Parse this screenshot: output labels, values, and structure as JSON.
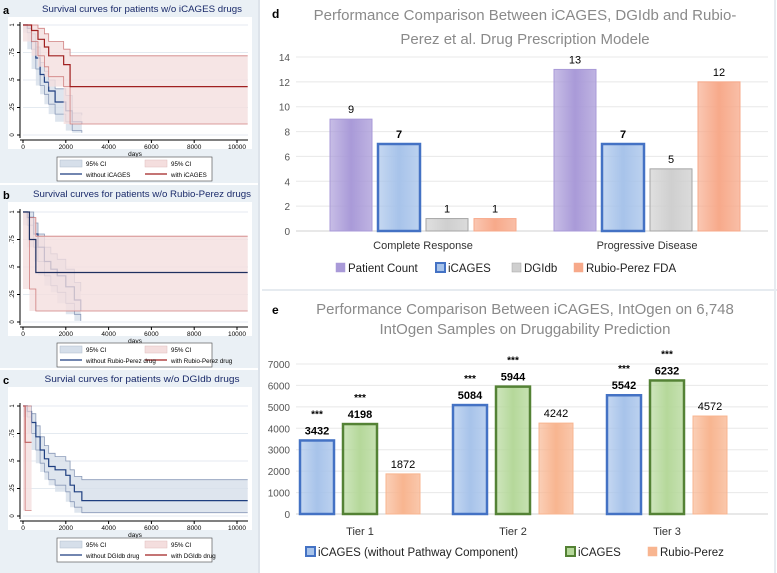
{
  "chart_data": [
    {
      "panel": "a",
      "type": "line",
      "title": "Survival curves for patients w/o iCAGES drugs",
      "xlabel": "days",
      "xlim": [
        0,
        10500
      ],
      "ylim": [
        0,
        1
      ],
      "xticks": [
        "0",
        "2000",
        "4000",
        "6000",
        "8000",
        "10000"
      ],
      "yticks": [
        "0",
        ".25",
        ".5",
        ".75",
        "1"
      ],
      "legend": [
        "95% CI",
        "95% CI",
        "without iCAGES",
        "with iCAGES"
      ],
      "series": [
        {
          "name": "without iCAGES",
          "color": "#1f3f80",
          "ci_color": "#d6dfea",
          "x": [
            0,
            200,
            400,
            600,
            800,
            1000,
            1200,
            1500,
            2000,
            2300,
            2750
          ],
          "y": [
            1,
            0.97,
            0.85,
            0.7,
            0.55,
            0.48,
            0.4,
            0.3,
            0.22,
            0.12,
            0.1
          ],
          "ci_low": [
            1,
            0.93,
            0.78,
            0.6,
            0.45,
            0.37,
            0.28,
            0.19,
            0.12,
            0.04,
            0.02
          ],
          "ci_high": [
            1,
            0.99,
            0.92,
            0.8,
            0.66,
            0.58,
            0.5,
            0.42,
            0.36,
            0.2,
            0.18
          ]
        },
        {
          "name": "with iCAGES",
          "color": "#a02020",
          "ci_color": "#f4dede",
          "x": [
            0,
            400,
            700,
            1000,
            1200,
            1900,
            2200,
            10500
          ],
          "y": [
            1,
            0.95,
            0.87,
            0.8,
            0.72,
            0.64,
            0.44,
            0.44
          ],
          "ci_low": [
            1,
            0.85,
            0.72,
            0.62,
            0.53,
            0.44,
            0.1,
            0.1
          ],
          "ci_high": [
            1,
            1,
            0.97,
            0.92,
            0.85,
            0.78,
            0.72,
            0.72
          ]
        }
      ]
    },
    {
      "panel": "b",
      "type": "line",
      "title": "Survival curves for patients w/o Rubio-Perez drugs",
      "xlabel": "days",
      "xlim": [
        0,
        10500
      ],
      "ylim": [
        0,
        1
      ],
      "xticks": [
        "0",
        "2000",
        "4000",
        "6000",
        "8000",
        "10000"
      ],
      "yticks": [
        "0",
        ".25",
        ".5",
        ".75",
        "1"
      ],
      "legend": [
        "95% CI",
        "95% CI",
        "without Rubio-Perez drug",
        "with Rubio-Perez drug"
      ],
      "series": [
        {
          "name": "without Rubio-Perez drug",
          "color": "#1f3f80",
          "ci_color": "#d6dfea",
          "x": [
            0,
            200,
            500,
            700,
            1000,
            1300,
            1600,
            2000,
            2400,
            2700
          ],
          "y": [
            1,
            0.95,
            0.8,
            0.68,
            0.55,
            0.48,
            0.42,
            0.32,
            0.2,
            0.1
          ],
          "ci_low": [
            1,
            0.88,
            0.68,
            0.55,
            0.42,
            0.33,
            0.27,
            0.17,
            0.07,
            0.01
          ],
          "ci_high": [
            1,
            1,
            0.9,
            0.8,
            0.68,
            0.62,
            0.57,
            0.48,
            0.36,
            0.28
          ]
        },
        {
          "name": "with Rubio-Perez drug",
          "color": "#1f2f5f",
          "ci_color": "#f4dede",
          "x": [
            0,
            300,
            600,
            10500
          ],
          "y": [
            1,
            0.75,
            0.45,
            0.45
          ],
          "ci_low": [
            1,
            0.3,
            0.1,
            0.1
          ],
          "ci_high": [
            1,
            0.95,
            0.78,
            0.78
          ]
        }
      ]
    },
    {
      "panel": "c",
      "type": "line",
      "title": "Survial curves for patients w/o DGIdb drugs",
      "xlabel": "days",
      "xlim": [
        0,
        10500
      ],
      "ylim": [
        0,
        1
      ],
      "xticks": [
        "0",
        "2000",
        "4000",
        "6000",
        "8000",
        "10000"
      ],
      "yticks": [
        "0",
        ".25",
        ".5",
        ".75",
        "1"
      ],
      "legend": [
        "95% CI",
        "95% CI",
        "without DGIdb drug",
        "with DGIdb drug"
      ],
      "series": [
        {
          "name": "without DGIdb drug",
          "color": "#1f3f80",
          "ci_color": "#d6dfea",
          "x": [
            0,
            200,
            400,
            600,
            800,
            1000,
            1200,
            1500,
            2000,
            2200,
            2400,
            2750,
            10500
          ],
          "y": [
            1,
            0.95,
            0.85,
            0.72,
            0.6,
            0.52,
            0.45,
            0.42,
            0.37,
            0.28,
            0.22,
            0.14,
            0.14
          ],
          "ci_low": [
            1,
            0.9,
            0.75,
            0.6,
            0.48,
            0.4,
            0.33,
            0.28,
            0.22,
            0.13,
            0.08,
            0.03,
            0.03
          ],
          "ci_high": [
            1,
            1,
            0.93,
            0.82,
            0.72,
            0.64,
            0.57,
            0.54,
            0.5,
            0.42,
            0.36,
            0.33,
            0.33
          ]
        },
        {
          "name": "with DGIdb drug",
          "color": "#c06060",
          "ci_color": "#f4dede",
          "x": [
            0,
            100,
            400
          ],
          "y": [
            1,
            0.67,
            0.67
          ],
          "ci_low": [
            1,
            0.05,
            0.05
          ],
          "ci_high": [
            1,
            1,
            1
          ]
        }
      ]
    },
    {
      "panel": "d",
      "type": "bar",
      "title": "Performance Comparison Between iCAGES, DGIdb and Rubio-Perez et al. Drug Prescription Modele",
      "title_lines": [
        "Performance Comparison Between iCAGES, DGIdb and Rubio-",
        "Perez et al. Drug Prescription Modele"
      ],
      "categories": [
        "Complete Response",
        "Progressive Disease"
      ],
      "ylim": [
        0,
        14
      ],
      "yticks": [
        "0",
        "2",
        "4",
        "6",
        "8",
        "10",
        "12",
        "14"
      ],
      "series": [
        {
          "name": "Patient Count",
          "values": [
            9,
            13
          ],
          "color": "#a99ad8",
          "border": "#a99ad8"
        },
        {
          "name": "iCAGES",
          "values": [
            7,
            7
          ],
          "color": "#a7c3ea",
          "border": "#4472c4",
          "bold": true
        },
        {
          "name": "DGIdb",
          "values": [
            1,
            5
          ],
          "color": "#cfcfcf",
          "border": "#a5a5a5"
        },
        {
          "name": "Rubio-Perez FDA",
          "values": [
            1,
            12
          ],
          "color": "#f7a98a",
          "border": "#f7a98a"
        }
      ]
    },
    {
      "panel": "e",
      "type": "bar",
      "title": "Performance Comparison Between iCAGES, IntOgen on 6,748 IntOgen Samples on Druggability Prediction",
      "title_lines": [
        "Performance Comparison Between iCAGES, IntOgen on 6,748",
        "IntOgen Samples on Druggability Prediction"
      ],
      "categories": [
        "Tier 1",
        "Tier 2",
        "Tier 3"
      ],
      "ylim": [
        0,
        7000
      ],
      "yticks": [
        "0",
        "1000",
        "2000",
        "3000",
        "4000",
        "5000",
        "6000",
        "7000"
      ],
      "significance": "***",
      "series": [
        {
          "name": "iCAGES (without Pathway Component)",
          "values": [
            3432,
            5084,
            5542
          ],
          "color": "#a7c3ea",
          "border": "#4472c4",
          "bold": true,
          "sig": true
        },
        {
          "name": "iCAGES",
          "values": [
            4198,
            5944,
            6232
          ],
          "color": "#b5d89a",
          "border": "#548235",
          "bold": true,
          "sig": true
        },
        {
          "name": "Rubio-Perez",
          "values": [
            1872,
            4242,
            4572
          ],
          "color": "#f8b590",
          "border": "#f8b590"
        }
      ]
    }
  ]
}
